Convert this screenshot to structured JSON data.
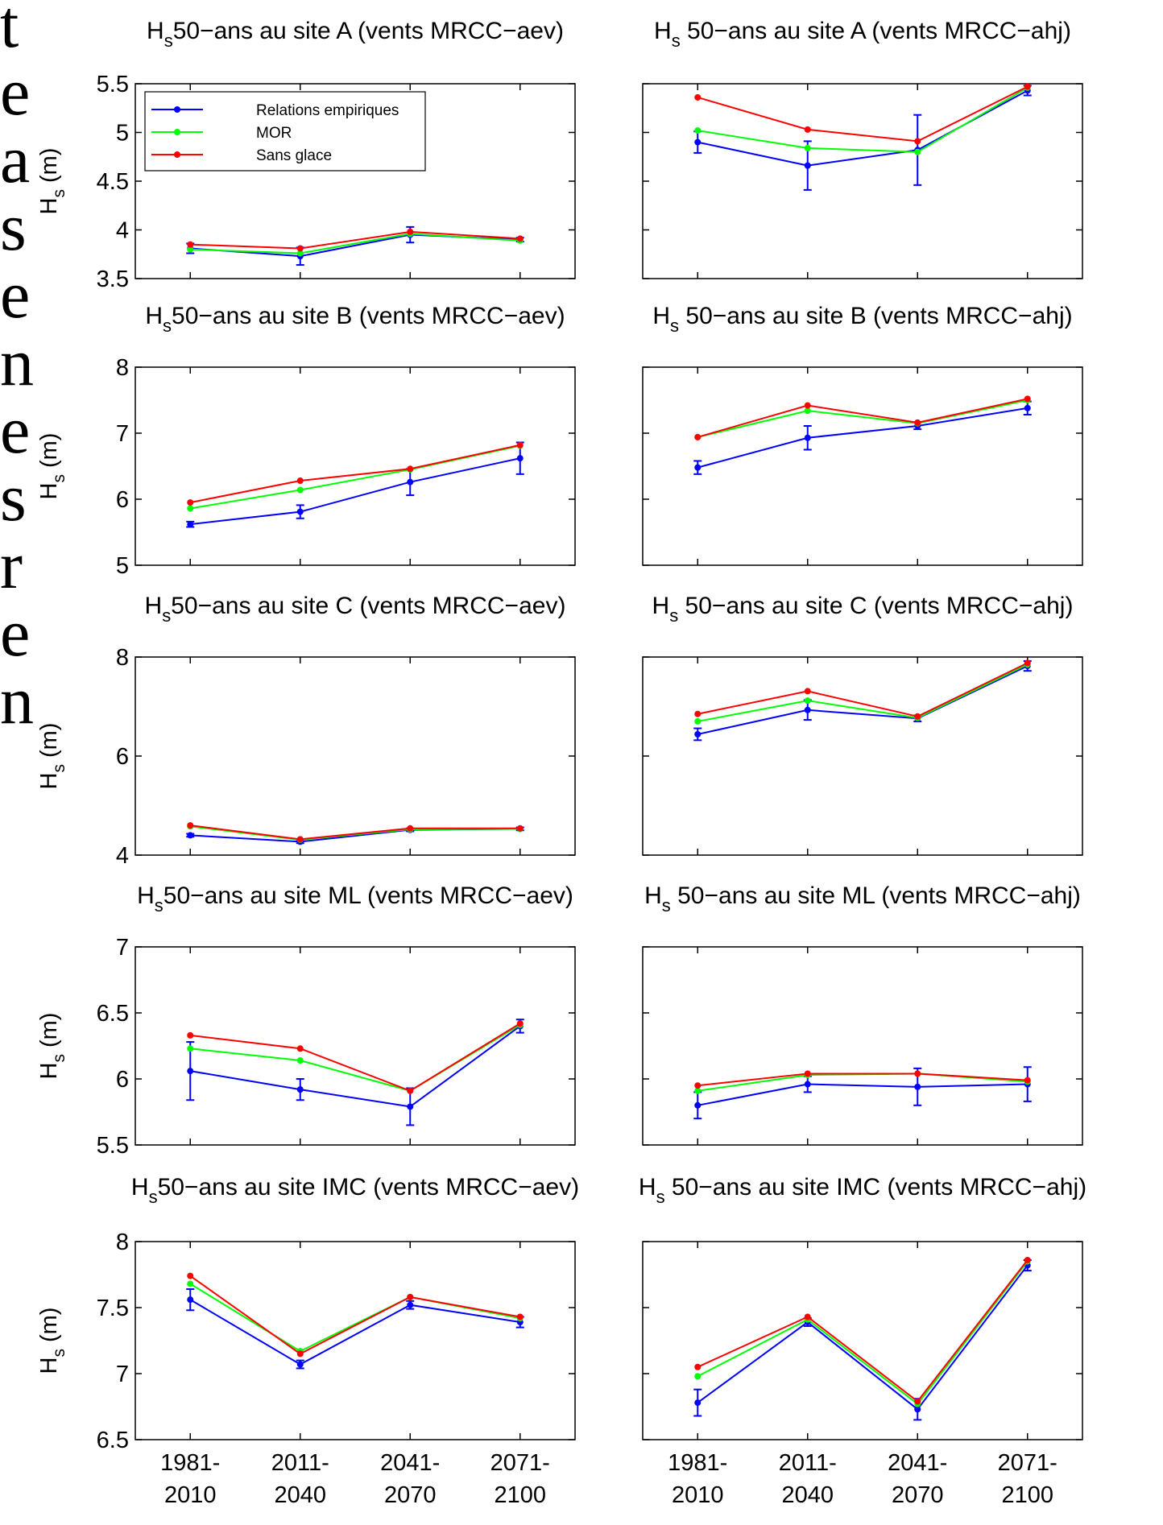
{
  "margin_text": [
    "t",
    "e",
    "a",
    "s",
    "e",
    "n",
    "e",
    "s",
    "r",
    "e",
    "n"
  ],
  "chart_data": [
    {
      "type": "line",
      "title_symbol": "H",
      "title_subscript": "s",
      "title": "50−ans au site A (vents MRCC−aev)",
      "ylabel": "H",
      "ylabel_subscript": "s",
      "ylabel_unit": "(m)",
      "legend": "upper left",
      "ylim": [
        3.5,
        5.5
      ],
      "yticks": [
        3.5,
        4,
        4.5,
        5,
        5.5
      ],
      "show_ytick_labels": true,
      "series": [
        {
          "name": "Relations empiriques",
          "color": "#0000ff",
          "values": [
            3.81,
            3.73,
            3.95,
            3.9
          ],
          "errors": [
            0.05,
            0.09,
            0.08,
            0.02
          ]
        },
        {
          "name": "MOR",
          "color": "#00ff00",
          "values": [
            3.8,
            3.76,
            3.96,
            3.89
          ]
        },
        {
          "name": "Sans glace",
          "color": "#ff0000",
          "values": [
            3.85,
            3.81,
            3.98,
            3.91
          ]
        }
      ]
    },
    {
      "type": "line",
      "title_symbol": "H",
      "title_subscript": "s",
      "title": " 50−ans au site A (vents MRCC−ahj)",
      "ylim": [
        3.5,
        5.5
      ],
      "yticks": [
        3.5,
        4,
        4.5,
        5,
        5.5
      ],
      "show_ytick_labels": false,
      "series": [
        {
          "color": "#0000ff",
          "values": [
            4.9,
            4.66,
            4.82,
            5.43
          ],
          "errors": [
            0.11,
            0.25,
            0.36,
            0.05
          ]
        },
        {
          "color": "#00ff00",
          "values": [
            5.02,
            4.84,
            4.8,
            5.46
          ]
        },
        {
          "color": "#ff0000",
          "values": [
            5.36,
            5.03,
            4.91,
            5.47
          ]
        }
      ]
    },
    {
      "type": "line",
      "title_symbol": "H",
      "title_subscript": "s",
      "title": "50−ans au site B (vents MRCC−aev)",
      "ylabel": "H",
      "ylabel_subscript": "s",
      "ylabel_unit": "(m)",
      "ylim": [
        5,
        8
      ],
      "yticks": [
        5,
        6,
        7,
        8
      ],
      "show_ytick_labels": true,
      "series": [
        {
          "color": "#0000ff",
          "values": [
            5.62,
            5.81,
            6.26,
            6.62
          ],
          "errors": [
            0.04,
            0.1,
            0.2,
            0.24
          ]
        },
        {
          "color": "#00ff00",
          "values": [
            5.86,
            6.14,
            6.45,
            6.81
          ]
        },
        {
          "color": "#ff0000",
          "values": [
            5.95,
            6.28,
            6.46,
            6.82
          ]
        }
      ]
    },
    {
      "type": "line",
      "title_symbol": "H",
      "title_subscript": "s",
      "title": " 50−ans au site B (vents MRCC−ahj)",
      "ylim": [
        5,
        8
      ],
      "yticks": [
        5,
        6,
        7,
        8
      ],
      "show_ytick_labels": false,
      "series": [
        {
          "color": "#0000ff",
          "values": [
            6.48,
            6.93,
            7.11,
            7.38
          ],
          "errors": [
            0.1,
            0.18,
            0.05,
            0.1
          ]
        },
        {
          "color": "#00ff00",
          "values": [
            6.94,
            7.34,
            7.15,
            7.5
          ]
        },
        {
          "color": "#ff0000",
          "values": [
            6.94,
            7.42,
            7.16,
            7.52
          ]
        }
      ]
    },
    {
      "type": "line",
      "title_symbol": "H",
      "title_subscript": "s",
      "title": "50−ans au site C (vents MRCC−aev)",
      "ylabel": "H",
      "ylabel_subscript": "s",
      "ylabel_unit": "(m)",
      "ylim": [
        4,
        8
      ],
      "yticks": [
        4,
        6,
        8
      ],
      "show_ytick_labels": true,
      "series": [
        {
          "color": "#0000ff",
          "values": [
            4.4,
            4.27,
            4.51,
            4.53
          ],
          "errors": [
            0.03,
            0.03,
            0.03,
            0.03
          ]
        },
        {
          "color": "#00ff00",
          "values": [
            4.58,
            4.31,
            4.52,
            4.53
          ]
        },
        {
          "color": "#ff0000",
          "values": [
            4.6,
            4.32,
            4.54,
            4.54
          ]
        }
      ]
    },
    {
      "type": "line",
      "title_symbol": "H",
      "title_subscript": "s",
      "title": " 50−ans au site C (vents MRCC−ahj)",
      "ylim": [
        4,
        8
      ],
      "yticks": [
        4,
        6,
        8
      ],
      "show_ytick_labels": false,
      "series": [
        {
          "color": "#0000ff",
          "values": [
            6.44,
            6.93,
            6.76,
            7.82
          ],
          "errors": [
            0.12,
            0.2,
            0.06,
            0.1
          ]
        },
        {
          "color": "#00ff00",
          "values": [
            6.7,
            7.12,
            6.77,
            7.85
          ]
        },
        {
          "color": "#ff0000",
          "values": [
            6.85,
            7.31,
            6.8,
            7.88
          ]
        }
      ]
    },
    {
      "type": "line",
      "title_symbol": "H",
      "title_subscript": "s",
      "title": "50−ans au site ML (vents MRCC−aev)",
      "ylabel": "H",
      "ylabel_subscript": "s",
      "ylabel_unit": "(m)",
      "ylim": [
        5.5,
        7
      ],
      "yticks": [
        5.5,
        6,
        6.5,
        7
      ],
      "show_ytick_labels": true,
      "series": [
        {
          "color": "#0000ff",
          "values": [
            6.06,
            5.92,
            5.79,
            6.4
          ],
          "errors": [
            0.22,
            0.08,
            0.14,
            0.05
          ]
        },
        {
          "color": "#00ff00",
          "values": [
            6.23,
            6.14,
            5.91,
            6.41
          ]
        },
        {
          "color": "#ff0000",
          "values": [
            6.33,
            6.23,
            5.91,
            6.42
          ]
        }
      ]
    },
    {
      "type": "line",
      "title_symbol": "H",
      "title_subscript": "s",
      "title": " 50−ans au site ML (vents MRCC−ahj)",
      "ylim": [
        5.5,
        7
      ],
      "yticks": [
        5.5,
        6,
        6.5,
        7
      ],
      "show_ytick_labels": false,
      "series": [
        {
          "color": "#0000ff",
          "values": [
            5.8,
            5.96,
            5.94,
            5.96
          ],
          "errors": [
            0.1,
            0.06,
            0.14,
            0.13
          ]
        },
        {
          "color": "#00ff00",
          "values": [
            5.91,
            6.03,
            6.04,
            5.98
          ]
        },
        {
          "color": "#ff0000",
          "values": [
            5.95,
            6.04,
            6.04,
            5.99
          ]
        }
      ]
    },
    {
      "type": "line",
      "title_symbol": "H",
      "title_subscript": "s",
      "title": "50−ans au site IMC (vents MRCC−aev)",
      "ylabel": "H",
      "ylabel_subscript": "s",
      "ylabel_unit": "(m)",
      "ylim": [
        6.5,
        8
      ],
      "yticks": [
        6.5,
        7,
        7.5,
        8
      ],
      "show_ytick_labels": true,
      "categories": [
        "1981-\n2010",
        "2011-\n2040",
        "2041-\n2070",
        "2071-\n2100"
      ],
      "series": [
        {
          "color": "#0000ff",
          "values": [
            7.56,
            7.07,
            7.52,
            7.39
          ],
          "errors": [
            0.08,
            0.03,
            0.03,
            0.04
          ]
        },
        {
          "color": "#00ff00",
          "values": [
            7.68,
            7.17,
            7.58,
            7.42
          ]
        },
        {
          "color": "#ff0000",
          "values": [
            7.74,
            7.15,
            7.58,
            7.43
          ]
        }
      ]
    },
    {
      "type": "line",
      "title_symbol": "H",
      "title_subscript": "s",
      "title": " 50−ans au site IMC (vents MRCC−ahj)",
      "ylim": [
        6.5,
        8
      ],
      "yticks": [
        6.5,
        7,
        7.5,
        8
      ],
      "show_ytick_labels": false,
      "categories": [
        "1981-\n2010",
        "2011-\n2040",
        "2041-\n2070",
        "2071-\n2100"
      ],
      "series": [
        {
          "color": "#0000ff",
          "values": [
            6.78,
            7.39,
            6.73,
            7.82
          ],
          "errors": [
            0.1,
            0.03,
            0.08,
            0.04
          ]
        },
        {
          "color": "#00ff00",
          "values": [
            6.98,
            7.41,
            6.77,
            7.85
          ]
        },
        {
          "color": "#ff0000",
          "values": [
            7.05,
            7.43,
            6.79,
            7.86
          ]
        }
      ]
    }
  ]
}
